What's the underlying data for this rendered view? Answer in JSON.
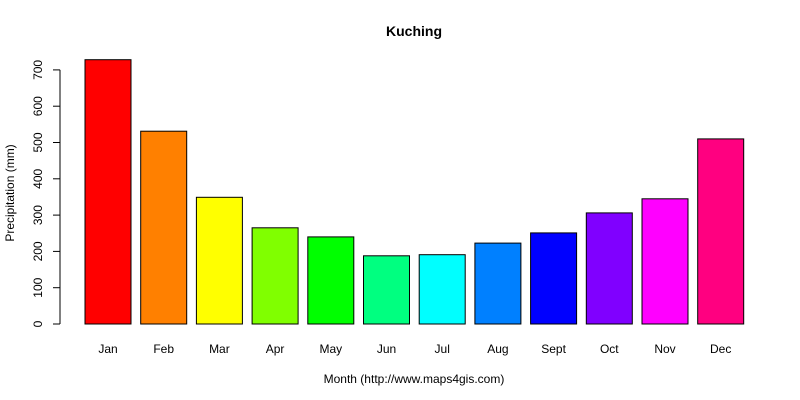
{
  "chart_data": {
    "type": "bar",
    "title": "Kuching",
    "xlabel": "Month (http://www.maps4gis.com)",
    "ylabel": "Precipitation (mm)",
    "categories": [
      "Jan",
      "Feb",
      "Mar",
      "Apr",
      "May",
      "Jun",
      "Jul",
      "Aug",
      "Sept",
      "Oct",
      "Nov",
      "Dec"
    ],
    "values": [
      728,
      531,
      349,
      265,
      240,
      188,
      191,
      223,
      251,
      306,
      345,
      510
    ],
    "colors": [
      "#ff0000",
      "#ff8000",
      "#ffff00",
      "#80ff00",
      "#00ff00",
      "#00ff80",
      "#00ffff",
      "#0080ff",
      "#0000ff",
      "#8000ff",
      "#ff00ff",
      "#ff0080"
    ],
    "yticks": [
      0,
      100,
      200,
      300,
      400,
      500,
      600,
      700
    ],
    "ylim": [
      0,
      700
    ],
    "grid": false,
    "legend": "none"
  }
}
